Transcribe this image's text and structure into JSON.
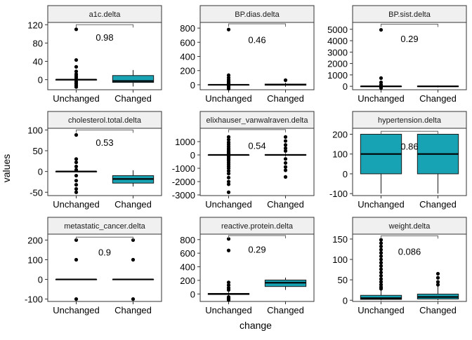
{
  "figure": {
    "ylabel": "values",
    "xlabel": "change",
    "fill_color": "#17a3b3",
    "strip_color": "#f0f0f0"
  },
  "chart_data": [
    {
      "type": "box",
      "title": "a1c.delta",
      "categories": [
        "Unchanged",
        "Changed"
      ],
      "ylim": [
        -22,
        125
      ],
      "yticks": [
        0,
        40,
        80,
        120
      ],
      "ytick_labels": [
        "0",
        "40",
        "80",
        "120"
      ],
      "p_value": "0.98",
      "annotation_y": 120,
      "label_y": 93,
      "boxes": [
        {
          "category": "Unchanged",
          "q1": 0,
          "median": 0,
          "q3": 0,
          "whisker_low": 0,
          "whisker_high": 0,
          "filled": false,
          "outliers": [
            110,
            43,
            28,
            18,
            12,
            8,
            4,
            -4,
            -8,
            -12,
            -16
          ]
        },
        {
          "category": "Changed",
          "q1": -6,
          "median": -3,
          "q3": 9,
          "whisker_low": -15,
          "whisker_high": 21,
          "filled": true,
          "outliers": []
        }
      ]
    },
    {
      "type": "box",
      "title": "BP.dias.delta",
      "categories": [
        "Unchanged",
        "Changed"
      ],
      "ylim": [
        -70,
        880
      ],
      "yticks": [
        0,
        200,
        400,
        600,
        800
      ],
      "ytick_labels": [
        "0",
        "200",
        "400",
        "600",
        "800"
      ],
      "p_value": "0.46",
      "annotation_y": 860,
      "label_y": 640,
      "boxes": [
        {
          "category": "Unchanged",
          "q1": 0,
          "median": 0,
          "q3": 0,
          "whisker_low": 0,
          "whisker_high": 0,
          "filled": false,
          "outliers": [
            780,
            135,
            100,
            70,
            45,
            25,
            12,
            -12,
            -25,
            -40,
            -55
          ]
        },
        {
          "category": "Changed",
          "q1": -5,
          "median": 0,
          "q3": 10,
          "whisker_low": -28,
          "whisker_high": 30,
          "filled": true,
          "outliers": [
            65
          ]
        }
      ]
    },
    {
      "type": "box",
      "title": "BP.sist.delta",
      "categories": [
        "Unchanged",
        "Changed"
      ],
      "ylim": [
        -300,
        5600
      ],
      "yticks": [
        0,
        1000,
        2000,
        3000,
        4000,
        5000
      ],
      "ytick_labels": [
        "0",
        "1000",
        "2000",
        "3000",
        "4000",
        "5000"
      ],
      "p_value": "0.29",
      "annotation_y": 5450,
      "label_y": 4200,
      "boxes": [
        {
          "category": "Unchanged",
          "q1": 0,
          "median": 0,
          "q3": 0,
          "whisker_low": 0,
          "whisker_high": 0,
          "filled": false,
          "outliers": [
            4950,
            720,
            350,
            150,
            60,
            -60,
            -150
          ]
        },
        {
          "category": "Changed",
          "q1": -30,
          "median": 0,
          "q3": 25,
          "whisker_low": -90,
          "whisker_high": 80,
          "filled": true,
          "outliers": []
        }
      ]
    },
    {
      "type": "box",
      "title": "cholesterol.total.delta",
      "categories": [
        "Unchanged",
        "Changed"
      ],
      "ylim": [
        -58,
        104
      ],
      "yticks": [
        -50,
        0,
        50,
        100
      ],
      "ytick_labels": [
        "-50",
        "0",
        "50",
        "100"
      ],
      "p_value": "0.53",
      "annotation_y": 100,
      "label_y": 70,
      "boxes": [
        {
          "category": "Unchanged",
          "q1": 0,
          "median": 0,
          "q3": 0,
          "whisker_low": 0,
          "whisker_high": 0,
          "filled": false,
          "outliers": [
            88,
            30,
            22,
            12,
            4,
            -10,
            -22,
            -32,
            -42,
            -50
          ]
        },
        {
          "category": "Changed",
          "q1": -28,
          "median": -18,
          "q3": -10,
          "whisker_low": -36,
          "whisker_high": 3,
          "filled": true,
          "outliers": []
        }
      ]
    },
    {
      "type": "box",
      "title": "elixhauser_vanwalraven.delta",
      "categories": [
        "Unchanged",
        "Changed"
      ],
      "ylim": [
        -3050,
        2000
      ],
      "yticks": [
        -3000,
        -2000,
        -1000,
        0,
        1000
      ],
      "ytick_labels": [
        "-3000",
        "-2000",
        "-1000",
        "0",
        "1000"
      ],
      "p_value": "0.54",
      "annotation_y": 1900,
      "label_y": 700,
      "boxes": [
        {
          "category": "Unchanged",
          "q1": 0,
          "median": 0,
          "q3": 0,
          "whisker_low": 0,
          "whisker_high": 0,
          "filled": false,
          "outliers": [
            1350,
            1150,
            950,
            800,
            650,
            500,
            380,
            260,
            150,
            80,
            -80,
            -160,
            -280,
            -400,
            -550,
            -700,
            -850,
            -1000,
            -1200,
            -1400,
            -1700,
            -2000,
            -2200,
            -2800
          ]
        },
        {
          "category": "Changed",
          "q1": -20,
          "median": 0,
          "q3": 30,
          "whisker_low": -120,
          "whisker_high": 130,
          "filled": true,
          "outliers": [
            1350,
            1050,
            750,
            500,
            300,
            -300,
            -600,
            -900,
            -1150,
            -1650
          ]
        }
      ]
    },
    {
      "type": "box",
      "title": "hypertension.delta",
      "categories": [
        "Unchanged",
        "Changed"
      ],
      "ylim": [
        -110,
        230
      ],
      "yticks": [
        -100,
        0,
        100,
        200
      ],
      "ytick_labels": [
        "-100",
        "0",
        "100",
        "200"
      ],
      "p_value": "0.86",
      "annotation_y": 215,
      "label_y": 140,
      "boxes": [
        {
          "category": "Unchanged",
          "q1": 0,
          "median": 100,
          "q3": 200,
          "whisker_low": -100,
          "whisker_high": 200,
          "filled": true,
          "outliers": []
        },
        {
          "category": "Changed",
          "q1": 0,
          "median": 100,
          "q3": 200,
          "whisker_low": -100,
          "whisker_high": 200,
          "filled": true,
          "outliers": []
        }
      ]
    },
    {
      "type": "box",
      "title": "metastatic_cancer.delta",
      "categories": [
        "Unchanged",
        "Changed"
      ],
      "ylim": [
        -112,
        230
      ],
      "yticks": [
        -100,
        0,
        100,
        200
      ],
      "ytick_labels": [
        "-100",
        "0",
        "100",
        "200"
      ],
      "p_value": "0.9",
      "annotation_y": 215,
      "label_y": 140,
      "boxes": [
        {
          "category": "Unchanged",
          "q1": 0,
          "median": 0,
          "q3": 0,
          "whisker_low": 0,
          "whisker_high": 0,
          "filled": false,
          "outliers": [
            200,
            100,
            -100
          ]
        },
        {
          "category": "Changed",
          "q1": 0,
          "median": 0,
          "q3": 0,
          "whisker_low": 0,
          "whisker_high": 0,
          "filled": false,
          "outliers": [
            200,
            100,
            -100
          ]
        }
      ]
    },
    {
      "type": "box",
      "title": "reactive.protein.delta",
      "categories": [
        "Unchanged",
        "Changed"
      ],
      "ylim": [
        -110,
        880
      ],
      "yticks": [
        0,
        200,
        400,
        600,
        800
      ],
      "ytick_labels": [
        "0",
        "200",
        "400",
        "600",
        "800"
      ],
      "p_value": "0.29",
      "annotation_y": 860,
      "label_y": 660,
      "boxes": [
        {
          "category": "Unchanged",
          "q1": -8,
          "median": 0,
          "q3": 8,
          "whisker_low": -30,
          "whisker_high": 30,
          "filled": true,
          "outliers": [
            810,
            640,
            170,
            130,
            90,
            60,
            -45,
            -60,
            -75,
            -90
          ]
        },
        {
          "category": "Changed",
          "q1": 110,
          "median": 165,
          "q3": 205,
          "whisker_low": 60,
          "whisker_high": 240,
          "filled": true,
          "outliers": []
        }
      ]
    },
    {
      "type": "box",
      "title": "weight.delta",
      "categories": [
        "Unchanged",
        "Changed"
      ],
      "ylim": [
        -3,
        162
      ],
      "yticks": [
        0,
        50,
        100,
        150
      ],
      "ytick_labels": [
        "0",
        "50",
        "100",
        "150"
      ],
      "p_value": "0.086",
      "annotation_y": 158,
      "label_y": 120,
      "boxes": [
        {
          "category": "Unchanged",
          "q1": 2,
          "median": 5,
          "q3": 12,
          "whisker_low": 0,
          "whisker_high": 25,
          "filled": true,
          "outliers": [
            148,
            140,
            132,
            124,
            116,
            108,
            100,
            92,
            84,
            76,
            68,
            60,
            52,
            45,
            38,
            32,
            28
          ]
        },
        {
          "category": "Changed",
          "q1": 3,
          "median": 8,
          "q3": 15,
          "whisker_low": 0,
          "whisker_high": 35,
          "filled": true,
          "outliers": [
            65,
            55,
            45,
            38
          ]
        }
      ]
    }
  ]
}
